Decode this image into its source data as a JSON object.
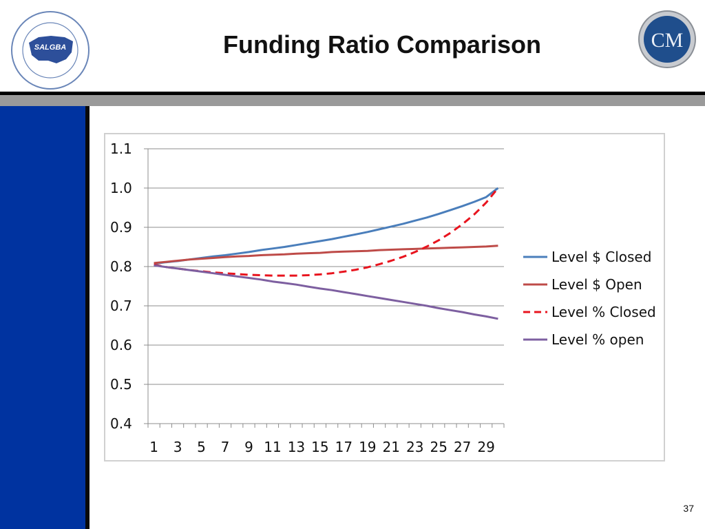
{
  "slide": {
    "title": "Funding Ratio Comparison",
    "page_number": "37",
    "left_logo_text": "SALGBA",
    "left_logo_ring_text": "STATE AND LOCAL GOVERNMENT BENEFITS ASSOCIATION",
    "right_logo_text": "CM",
    "colors": {
      "sidebar": "#0033a0",
      "rule": "#000000",
      "band": "#9a9a9a"
    }
  },
  "chart_data": {
    "type": "line",
    "title": "",
    "xlabel": "",
    "ylabel": "",
    "x": [
      1,
      2,
      3,
      4,
      5,
      6,
      7,
      8,
      9,
      10,
      11,
      12,
      13,
      14,
      15,
      16,
      17,
      18,
      19,
      20,
      21,
      22,
      23,
      24,
      25,
      26,
      27,
      28,
      29,
      30
    ],
    "x_tick_labels": [
      "1",
      "3",
      "5",
      "7",
      "9",
      "11",
      "13",
      "15",
      "17",
      "19",
      "21",
      "23",
      "25",
      "27",
      "29"
    ],
    "ylim": [
      0.4,
      1.1
    ],
    "y_tick_labels": [
      "1.1",
      "1.0",
      "0.9",
      "0.8",
      "0.7",
      "0.6",
      "0.5",
      "0.4"
    ],
    "grid": "horizontal",
    "legend_position": "right",
    "series": [
      {
        "name": "Level $ Closed",
        "color": "#4a7ebb",
        "dash": "solid",
        "values": [
          0.807,
          0.811,
          0.814,
          0.818,
          0.822,
          0.826,
          0.829,
          0.833,
          0.837,
          0.842,
          0.846,
          0.85,
          0.855,
          0.86,
          0.865,
          0.87,
          0.876,
          0.882,
          0.888,
          0.895,
          0.902,
          0.909,
          0.917,
          0.925,
          0.934,
          0.944,
          0.954,
          0.965,
          0.977,
          1.0
        ]
      },
      {
        "name": "Level $ Open",
        "color": "#be4b48",
        "dash": "solid",
        "values": [
          0.809,
          0.812,
          0.815,
          0.818,
          0.82,
          0.822,
          0.824,
          0.826,
          0.827,
          0.829,
          0.83,
          0.831,
          0.833,
          0.834,
          0.835,
          0.837,
          0.838,
          0.839,
          0.84,
          0.842,
          0.843,
          0.844,
          0.845,
          0.846,
          0.847,
          0.848,
          0.849,
          0.85,
          0.851,
          0.853
        ]
      },
      {
        "name": "Level % Closed",
        "color": "#e8141e",
        "dash": "dashed",
        "values": [
          0.805,
          0.799,
          0.795,
          0.791,
          0.788,
          0.785,
          0.783,
          0.781,
          0.779,
          0.778,
          0.777,
          0.777,
          0.777,
          0.778,
          0.78,
          0.783,
          0.787,
          0.792,
          0.798,
          0.806,
          0.815,
          0.825,
          0.837,
          0.851,
          0.867,
          0.886,
          0.908,
          0.933,
          0.963,
          1.0
        ]
      },
      {
        "name": "Level % open",
        "color": "#7d5fa0",
        "dash": "solid",
        "values": [
          0.803,
          0.799,
          0.795,
          0.791,
          0.787,
          0.783,
          0.779,
          0.775,
          0.771,
          0.767,
          0.762,
          0.758,
          0.754,
          0.749,
          0.744,
          0.74,
          0.735,
          0.73,
          0.725,
          0.72,
          0.715,
          0.71,
          0.705,
          0.7,
          0.694,
          0.689,
          0.684,
          0.678,
          0.673,
          0.667
        ]
      }
    ]
  }
}
